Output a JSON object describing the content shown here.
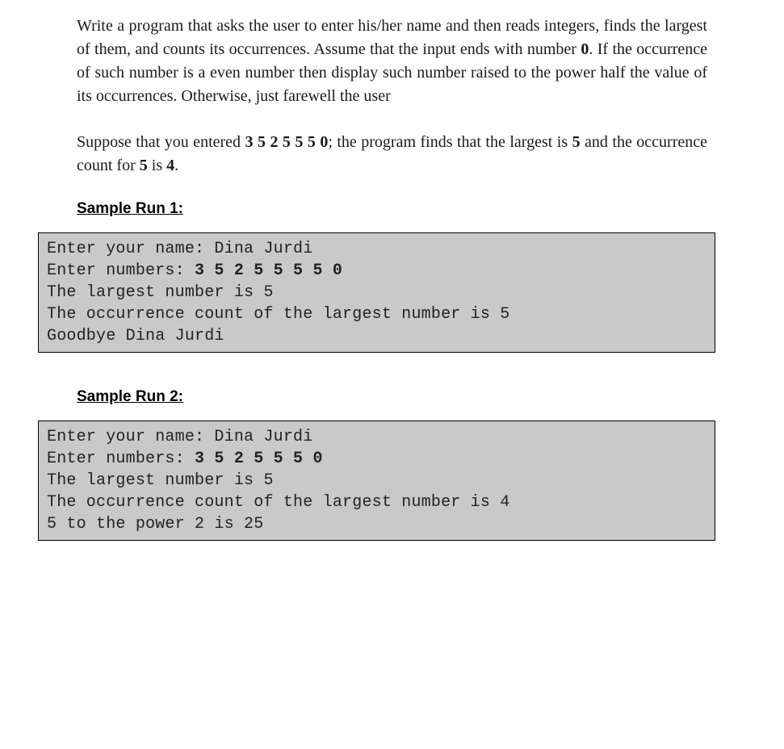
{
  "problem": {
    "paragraph1_parts": [
      "Write a program that asks the user to enter his/her name and then reads integers, finds the largest of them, and counts its occurrences. Assume that the input ends with number ",
      "0",
      ". If the occurrence of such number is a even number then display such number raised to the power half the value of its occurrences. Otherwise, just farewell the user"
    ],
    "paragraph2_parts": [
      "Suppose that you entered ",
      "3 5 2 5 5 5 0",
      "; the program finds that the largest is ",
      "5",
      " and the occurrence count for ",
      "5",
      " is ",
      "4",
      "."
    ]
  },
  "sample1": {
    "heading": "Sample Run 1:",
    "lines": [
      {
        "plain": "Enter your name: Dina Jurdi"
      },
      {
        "prefix": "Enter numbers: ",
        "bold": "3 5 2 5 5 5 5 0"
      },
      {
        "plain": "The largest number is 5"
      },
      {
        "plain": "The occurrence count of the largest number is 5"
      },
      {
        "plain": "Goodbye Dina Jurdi"
      }
    ]
  },
  "sample2": {
    "heading": "Sample Run 2:",
    "lines": [
      {
        "plain": "Enter your name: Dina Jurdi"
      },
      {
        "prefix": "Enter numbers: ",
        "bold": "3 5 2 5 5 5 0"
      },
      {
        "plain": "The largest number is 5"
      },
      {
        "plain": "The occurrence count of the largest number is 4"
      },
      {
        "plain": "5 to the power 2 is 25"
      }
    ]
  },
  "colors": {
    "code_bg": "#c9c9c9",
    "code_border": "#000000",
    "text": "#1a1a1a"
  }
}
